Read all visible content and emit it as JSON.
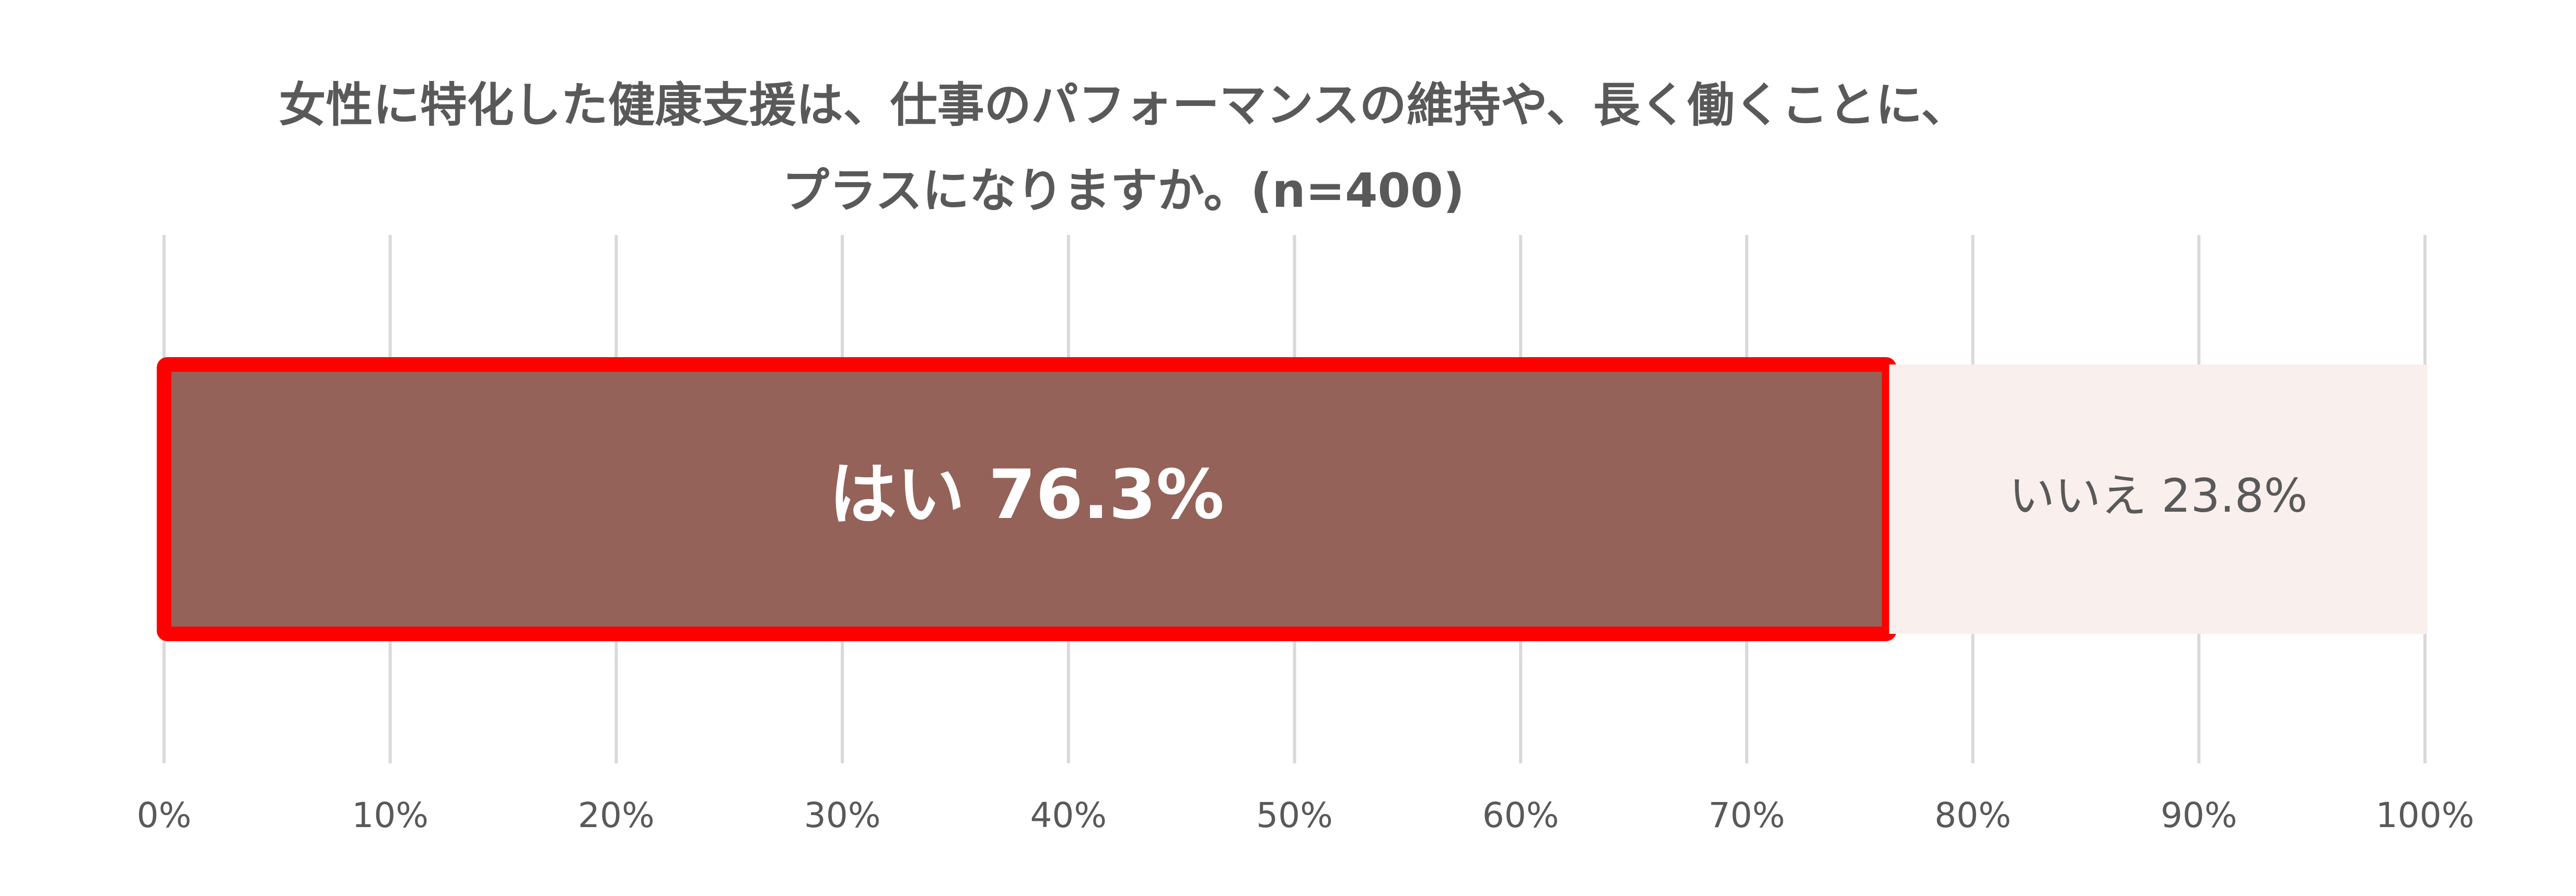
{
  "chart_data": {
    "type": "stacked-bar-horizontal",
    "title": [
      "女性に特化した健康支援は、仕事のパフォーマンスの維持や、長く働くことに、",
      "プラスになりますか。(n=400)"
    ],
    "categories": [
      null
    ],
    "series": [
      {
        "name": "はい",
        "color": "#946259",
        "border": "#ff0000",
        "label_color": "#ffffff",
        "values": [
          76.3
        ],
        "value_labels": [
          "76.3%"
        ]
      },
      {
        "name": "いいえ",
        "color": "#f9efec",
        "label_color": "#595959",
        "values": [
          23.8
        ],
        "value_labels": [
          "23.8%"
        ]
      }
    ],
    "xlim": [
      0,
      100
    ],
    "xticks": [
      {
        "value": 0,
        "label": "0%"
      },
      {
        "value": 10,
        "label": "10%"
      },
      {
        "value": 20,
        "label": "20%"
      },
      {
        "value": 30,
        "label": "30%"
      },
      {
        "value": 40,
        "label": "40%"
      },
      {
        "value": 50,
        "label": "50%"
      },
      {
        "value": 60,
        "label": "60%"
      },
      {
        "value": 70,
        "label": "70%"
      },
      {
        "value": 80,
        "label": "80%"
      },
      {
        "value": 90,
        "label": "90%"
      },
      {
        "value": 100,
        "label": "100%"
      }
    ],
    "grid": true
  }
}
